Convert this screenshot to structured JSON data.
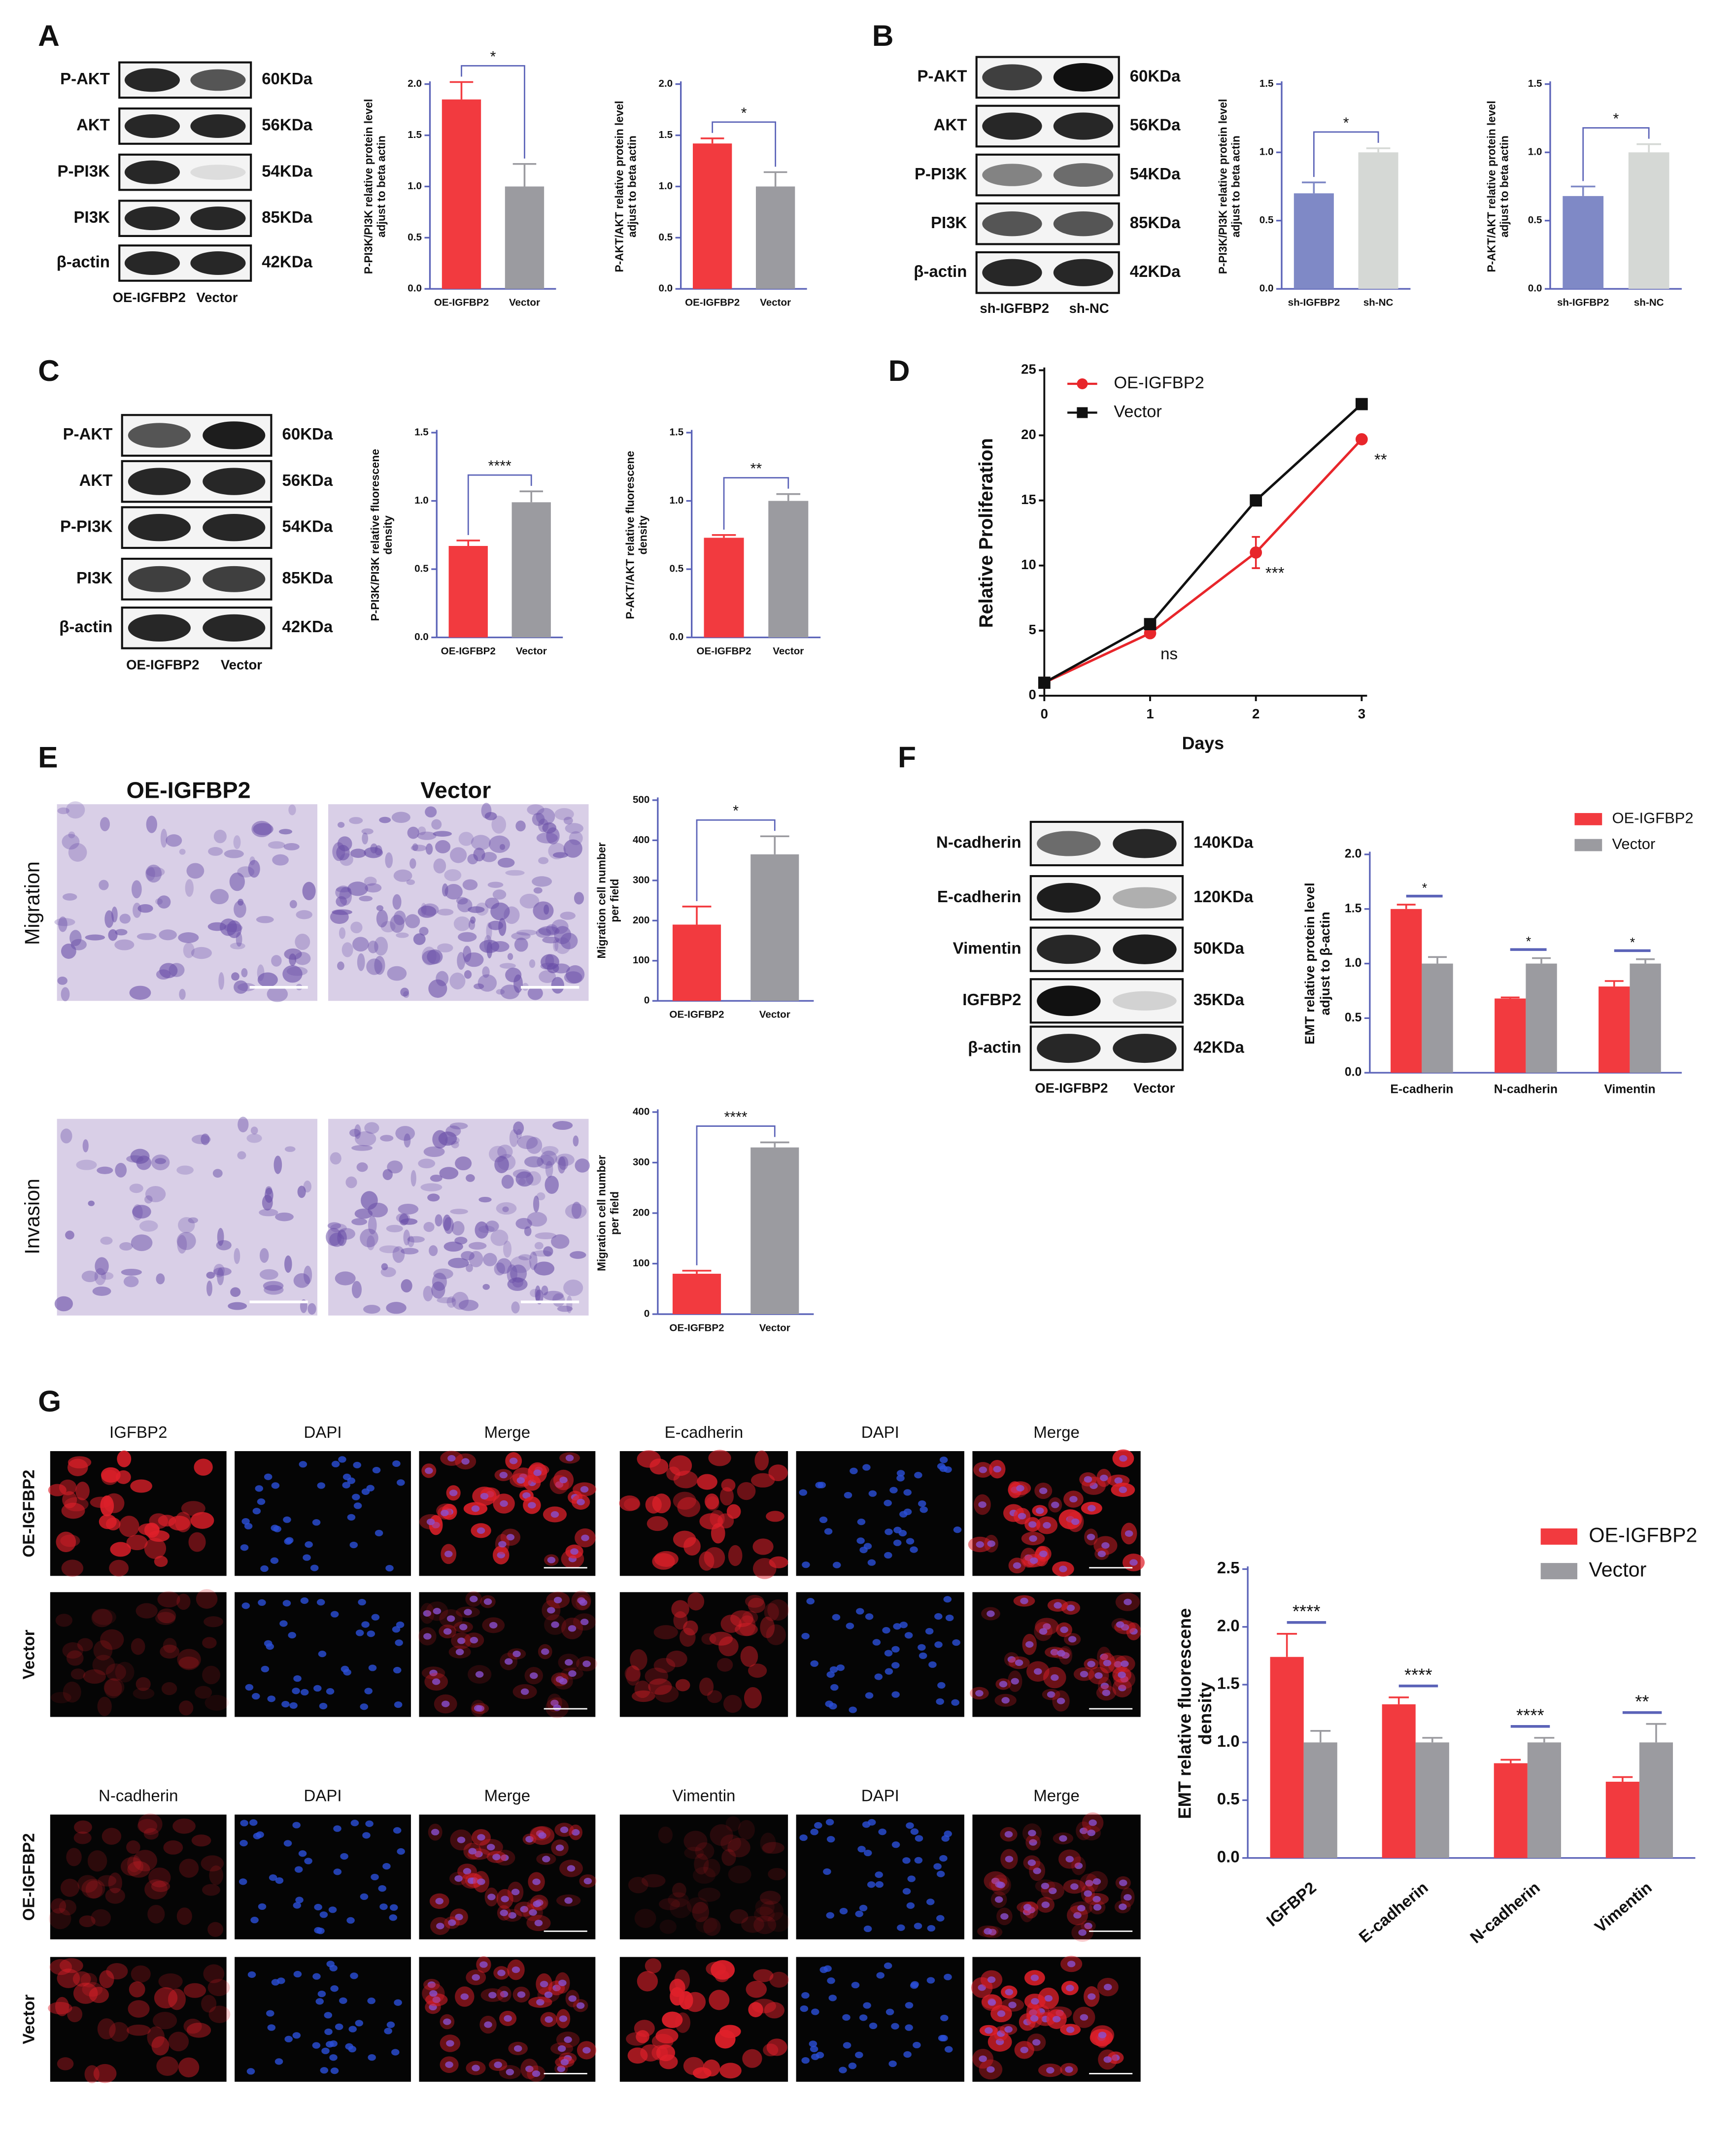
{
  "panel_letters": [
    "A",
    "B",
    "C",
    "D",
    "E",
    "F",
    "G"
  ],
  "blots": [
    {
      "proteins": [
        "P-AKT",
        "AKT",
        "P-PI3K",
        "PI3K",
        "β-actin"
      ],
      "sizes": [
        "60KDa",
        "56KDa",
        "54KDa",
        "85KDa",
        "42KDa"
      ],
      "groups": [
        "OE-IGFBP2",
        "Vector"
      ]
    },
    {
      "proteins": [
        "P-AKT",
        "AKT",
        "P-PI3K",
        "PI3K",
        "β-actin"
      ],
      "sizes": [
        "60KDa",
        "56KDa",
        "54KDa",
        "85KDa",
        "42KDa"
      ],
      "groups": [
        "sh-IGFBP2",
        "sh-NC"
      ]
    },
    {
      "proteins": [
        "P-AKT",
        "AKT",
        "P-PI3K",
        "PI3K",
        "β-actin"
      ],
      "sizes": [
        "60KDa",
        "56KDa",
        "54KDa",
        "85KDa",
        "42KDa"
      ],
      "groups": [
        "OE-IGFBP2",
        "Vector"
      ]
    },
    {
      "proteins": [
        "N-cadherin",
        "E-cadherin",
        "Vimentin",
        "IGFBP2",
        "β-actin"
      ],
      "sizes": [
        "140KDa",
        "120KDa",
        "50KDa",
        "35KDa",
        "42KDa"
      ],
      "groups": [
        "OE-IGFBP2",
        "Vector"
      ]
    }
  ],
  "images_E": {
    "columns": [
      "OE-IGFBP2",
      "Vector"
    ],
    "rows": [
      "Migration",
      "Invasion"
    ]
  },
  "images_G": [
    {
      "headers": [
        "IGFBP2",
        "DAPI",
        "Merge",
        "E-cadherin",
        "DAPI",
        "Merge"
      ],
      "rows": [
        "OE-IGFBP2",
        "Vector"
      ]
    },
    {
      "headers": [
        "N-cadherin",
        "DAPI",
        "Merge",
        "Vimentin",
        "DAPI",
        "Merge"
      ],
      "rows": [
        "OE-IGFBP2",
        "Vector"
      ]
    }
  ],
  "chart_data": [
    {
      "type": "bar",
      "categories": [
        "OE-IGFBP2",
        "Vector"
      ],
      "values": [
        1.85,
        1.0
      ],
      "errors": [
        0.17,
        0.22
      ],
      "colors": [
        "#f23a3f",
        "#9b9ba0"
      ],
      "ylabel": [
        "P-PI3K/PI3K relative protein  level",
        "adjust to beta actin"
      ],
      "ylim": [
        0,
        2.0
      ],
      "yticks": [
        {
          "value": 0,
          "label": "0.0"
        },
        0.5,
        {
          "value": 1,
          "label": "1.0"
        },
        1.5,
        {
          "value": 2,
          "label": "2.0"
        }
      ],
      "annotations": [
        "*"
      ]
    },
    {
      "type": "bar",
      "categories": [
        "OE-IGFBP2",
        "Vector"
      ],
      "values": [
        1.42,
        1.0
      ],
      "errors": [
        0.05,
        0.14
      ],
      "colors": [
        "#f23a3f",
        "#9b9ba0"
      ],
      "ylabel": [
        "P-AKT/AKT relative protein  level",
        "adjust to beta actin"
      ],
      "ylim": [
        0,
        2.0
      ],
      "yticks": [
        {
          "value": 0,
          "label": "0.0"
        },
        0.5,
        {
          "value": 1,
          "label": "1.0"
        },
        1.5,
        {
          "value": 2,
          "label": "2.0"
        }
      ],
      "annotations": [
        "*"
      ]
    },
    {
      "type": "bar",
      "categories": [
        "sh-IGFBP2",
        "sh-NC"
      ],
      "values": [
        0.7,
        1.0
      ],
      "errors": [
        0.08,
        0.03
      ],
      "colors": [
        "#7f89c6",
        "#d5d8d5"
      ],
      "ylabel": [
        "P-PI3K/PI3K relative protein  level",
        "adjust to beta actin"
      ],
      "ylim": [
        0,
        1.5
      ],
      "yticks": [
        {
          "value": 0,
          "label": "0.0"
        },
        0.5,
        {
          "value": 1,
          "label": "1.0"
        },
        1.5
      ],
      "annotations": [
        "*"
      ]
    },
    {
      "type": "bar",
      "categories": [
        "sh-IGFBP2",
        "sh-NC"
      ],
      "values": [
        0.68,
        1.0
      ],
      "errors": [
        0.07,
        0.06
      ],
      "colors": [
        "#7f89c6",
        "#d5d8d5"
      ],
      "ylabel": [
        "P-AKT/AKT relative protein  level",
        "adjust to beta actin"
      ],
      "ylim": [
        0,
        1.5
      ],
      "yticks": [
        {
          "value": 0,
          "label": "0.0"
        },
        0.5,
        {
          "value": 1,
          "label": "1.0"
        },
        1.5
      ],
      "annotations": [
        "*"
      ]
    },
    {
      "type": "bar",
      "categories": [
        "OE-IGFBP2",
        "Vector"
      ],
      "values": [
        0.67,
        0.99
      ],
      "errors": [
        0.04,
        0.08
      ],
      "colors": [
        "#f23a3f",
        "#9b9ba0"
      ],
      "ylabel": [
        "P-PI3K/PI3K relative fluorescene",
        "density"
      ],
      "ylim": [
        0,
        1.5
      ],
      "yticks": [
        {
          "value": 0,
          "label": "0.0"
        },
        0.5,
        {
          "value": 1,
          "label": "1.0"
        },
        1.5
      ],
      "annotations": [
        "****"
      ]
    },
    {
      "type": "bar",
      "categories": [
        "OE-IGFBP2",
        "Vector"
      ],
      "values": [
        0.73,
        1.0
      ],
      "errors": [
        0.02,
        0.05
      ],
      "colors": [
        "#f23a3f",
        "#9b9ba0"
      ],
      "ylabel": [
        "P-AKT/AKT relative fluorescene",
        "density"
      ],
      "ylim": [
        0,
        1.5
      ],
      "yticks": [
        {
          "value": 0,
          "label": "0.0"
        },
        0.5,
        {
          "value": 1,
          "label": "1.0"
        },
        1.5
      ],
      "annotations": [
        "**"
      ]
    },
    {
      "type": "line",
      "x": [
        0,
        1,
        2,
        3
      ],
      "xlim": [
        0,
        3
      ],
      "xticks": [
        0,
        1,
        2,
        3
      ],
      "ylim": [
        0,
        25
      ],
      "yticks": [
        0,
        5,
        10,
        15,
        20,
        25
      ],
      "xlabel": "Days",
      "ylabel": [
        "Relative Proliferation"
      ],
      "series": [
        {
          "name": "OE-IGFBP2",
          "color": "#e8262b",
          "marker": "circle",
          "values": [
            1,
            4.8,
            11,
            19.7
          ],
          "errors": [
            0.1,
            0.2,
            1.2,
            0.2
          ]
        },
        {
          "name": "Vector",
          "color": "#111111",
          "marker": "square",
          "values": [
            1,
            5.5,
            15,
            22.4
          ],
          "errors": [
            0.1,
            0.1,
            0.4,
            0.2
          ]
        }
      ],
      "annotations": [
        "ns",
        "***",
        "**"
      ],
      "legend": "upper left"
    },
    {
      "type": "bar",
      "categories": [
        "OE-IGFBP2",
        "Vector"
      ],
      "values": [
        190,
        365
      ],
      "errors": [
        45,
        45
      ],
      "colors": [
        "#f23a3f",
        "#9b9ba0"
      ],
      "ylabel": [
        "Migration cell number",
        "per field"
      ],
      "ylim": [
        0,
        500
      ],
      "yticks": [
        0,
        100,
        200,
        300,
        400,
        500
      ],
      "annotations": [
        "*"
      ]
    },
    {
      "type": "bar",
      "categories": [
        "OE-IGFBP2",
        "Vector"
      ],
      "values": [
        80,
        330
      ],
      "errors": [
        6,
        10
      ],
      "colors": [
        "#f23a3f",
        "#9b9ba0"
      ],
      "ylabel": [
        "Migration cell number",
        "per field"
      ],
      "ylim": [
        0,
        400
      ],
      "yticks": [
        0,
        100,
        200,
        300,
        400
      ],
      "annotations": [
        "****"
      ]
    },
    {
      "type": "bar",
      "categories": [
        "E-cadherin",
        "N-cadherin",
        "Vimentin"
      ],
      "series": [
        {
          "name": "OE-IGFBP2",
          "color": "#f23a3f",
          "values": [
            1.5,
            0.68,
            0.79
          ],
          "errors": [
            0.04,
            0.01,
            0.05
          ]
        },
        {
          "name": "Vector",
          "color": "#9b9ba0",
          "values": [
            1.0,
            1.0,
            1.0
          ],
          "errors": [
            0.06,
            0.05,
            0.04
          ]
        }
      ],
      "ylabel": [
        "EMT relative protein level",
        "adjust to β-actin"
      ],
      "ylim": [
        0,
        2.0
      ],
      "yticks": [
        {
          "value": 0,
          "label": "0.0"
        },
        0.5,
        {
          "value": 1,
          "label": "1.0"
        },
        1.5,
        {
          "value": 2,
          "label": "2.0"
        }
      ],
      "annotations": [
        "*",
        "*",
        "*"
      ],
      "legend": "upper right"
    },
    {
      "type": "bar",
      "categories": [
        "IGFBP2",
        "E-cadherin",
        "N-cadherin",
        "Vimentin"
      ],
      "series": [
        {
          "name": "OE-IGFBP2",
          "color": "#f23a3f",
          "values": [
            1.74,
            1.33,
            0.82,
            0.66
          ],
          "errors": [
            0.2,
            0.06,
            0.03,
            0.04
          ]
        },
        {
          "name": "Vector",
          "color": "#9b9ba0",
          "values": [
            1.0,
            1.0,
            1.0,
            1.0
          ],
          "errors": [
            0.1,
            0.04,
            0.04,
            0.16
          ]
        }
      ],
      "ylabel": [
        "EMT relative fluorescene",
        "density"
      ],
      "ylim": [
        0,
        2.5
      ],
      "yticks": [
        {
          "value": 0,
          "label": "0.0"
        },
        0.5,
        {
          "value": 1,
          "label": "1.0"
        },
        1.5,
        {
          "value": 2,
          "label": "2.0"
        },
        2.5
      ],
      "annotations": [
        "****",
        "****",
        "****",
        "**"
      ],
      "legend": "upper right"
    }
  ]
}
